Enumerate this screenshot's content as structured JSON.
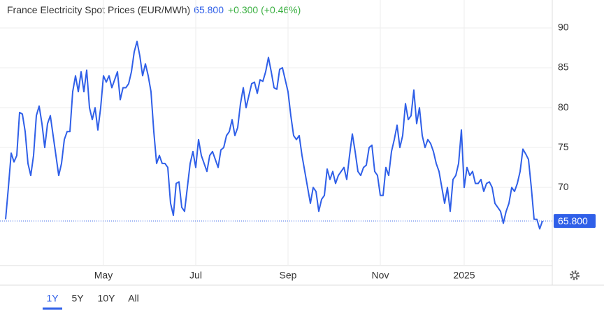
{
  "chart_data": {
    "type": "line",
    "title": "France Electricity Spot Prices (EUR/MWh)",
    "current": {
      "value": 65.8,
      "label": "65.800"
    },
    "change": "+0.300 (+0.46%)",
    "categories": [
      null,
      null,
      null,
      null,
      null,
      null,
      null,
      null,
      null,
      null,
      null,
      null,
      null,
      null,
      null,
      null,
      null,
      null,
      null,
      null,
      null,
      null,
      null,
      null,
      null,
      null,
      null,
      null,
      null,
      null,
      null,
      null,
      null,
      null,
      null,
      "May",
      null,
      null,
      null,
      null,
      null,
      null,
      null,
      null,
      null,
      null,
      null,
      null,
      null,
      null,
      null,
      null,
      null,
      null,
      null,
      null,
      null,
      null,
      null,
      null,
      null,
      null,
      null,
      null,
      null,
      null,
      null,
      null,
      "Jul",
      null,
      null,
      null,
      null,
      null,
      null,
      null,
      null,
      null,
      null,
      null,
      null,
      null,
      null,
      null,
      null,
      null,
      null,
      null,
      null,
      null,
      null,
      null,
      null,
      null,
      null,
      null,
      null,
      null,
      null,
      null,
      null,
      "Sep",
      null,
      null,
      null,
      null,
      null,
      null,
      null,
      null,
      null,
      null,
      null,
      null,
      null,
      null,
      null,
      null,
      null,
      null,
      null,
      null,
      null,
      null,
      null,
      null,
      null,
      null,
      null,
      null,
      null,
      null,
      null,
      null,
      "Nov",
      null,
      null,
      null,
      null,
      null,
      null,
      null,
      null,
      null,
      null,
      null,
      null,
      null,
      null,
      null,
      null,
      null,
      null,
      null,
      null,
      null,
      null,
      null,
      null,
      null,
      null,
      null,
      null,
      null,
      "2025",
      null,
      null,
      null,
      null,
      null,
      null,
      null,
      null,
      null,
      null,
      null,
      null,
      null,
      null,
      null,
      null,
      null,
      null,
      null,
      null,
      null,
      null,
      null,
      null,
      null,
      null,
      null,
      null
    ],
    "series": [
      {
        "color": "#2f5fe8",
        "values": [
          66,
          70,
          74.3,
          73.2,
          74,
          79.4,
          79.2,
          77,
          73,
          71.5,
          74,
          79,
          80.2,
          78,
          75,
          78,
          79,
          76.5,
          74,
          71.5,
          73,
          76,
          77,
          77,
          82,
          84,
          82,
          84.5,
          82,
          84.7,
          80,
          78.5,
          80,
          77.2,
          80,
          84,
          83.2,
          84,
          82.5,
          83.5,
          84.5,
          81,
          82.5,
          82.5,
          83,
          84.5,
          87,
          88.3,
          86.5,
          84,
          85.5,
          84,
          82,
          77,
          73,
          74,
          73,
          73,
          72.5,
          68,
          66.5,
          70.5,
          70.7,
          67.5,
          67,
          70,
          73,
          74.5,
          72.5,
          76,
          74,
          73,
          72,
          74,
          74.5,
          73.5,
          72.5,
          74.7,
          75,
          76.5,
          77,
          78.5,
          76.5,
          77.5,
          80.5,
          82.5,
          80,
          81.5,
          83,
          83.2,
          81.8,
          83.5,
          83.3,
          84.5,
          86.3,
          84.5,
          82.5,
          82.3,
          84.8,
          85,
          83.5,
          82,
          79,
          76.5,
          76,
          76.5,
          74,
          72,
          70,
          68,
          70,
          69.5,
          67,
          68.5,
          69,
          72.3,
          71,
          72,
          70.5,
          71.5,
          72,
          72.5,
          71,
          74,
          76.7,
          74.5,
          72,
          71.5,
          72.5,
          72.8,
          75,
          75.3,
          72,
          71.5,
          69,
          69,
          72.5,
          71.5,
          74.5,
          76,
          77.8,
          75,
          76.5,
          80.5,
          78.5,
          79,
          82.2,
          78,
          80,
          76.5,
          75,
          76,
          75.5,
          74.5,
          73,
          72,
          70,
          68,
          70,
          67,
          71,
          71.5,
          73,
          77.2,
          70,
          72.5,
          71.5,
          72,
          70.5,
          70.5,
          71,
          69.5,
          70.5,
          70.7,
          70,
          68,
          67.5,
          67,
          65.5,
          67,
          68,
          70,
          69.5,
          70.5,
          72,
          74.8,
          74.2,
          73.5,
          70,
          66,
          66,
          64.8,
          65.8
        ]
      }
    ],
    "ylim": [
      60.2,
      93.5
    ],
    "yticks": [
      70,
      75,
      80,
      85,
      90
    ],
    "grid": true
  },
  "controls": {
    "ranges": [
      "1Y",
      "5Y",
      "10Y",
      "All"
    ],
    "selected": 0
  }
}
